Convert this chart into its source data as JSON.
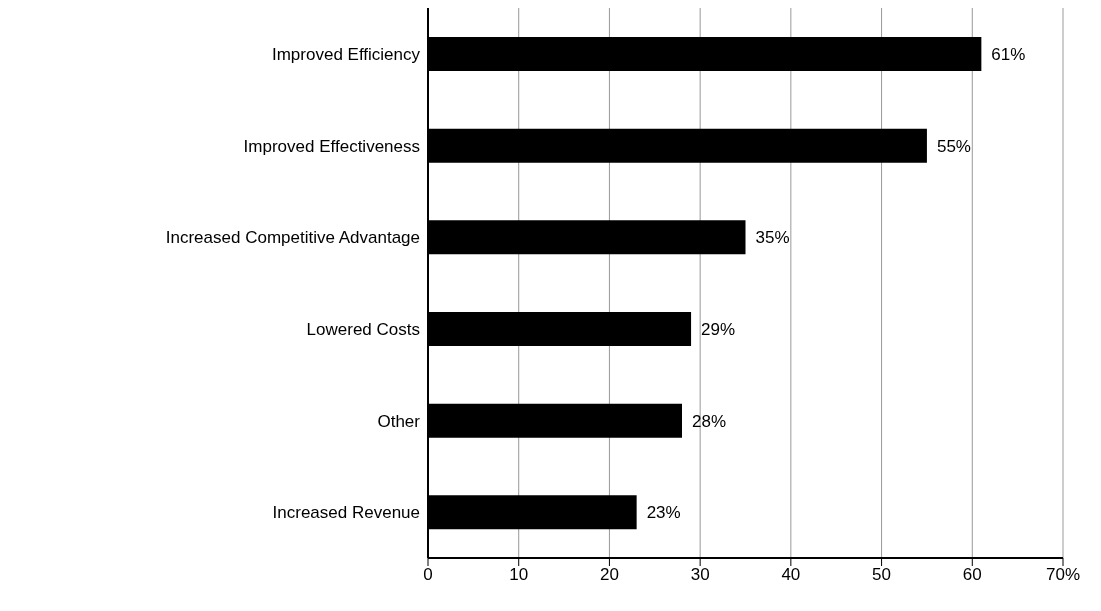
{
  "chart_data": {
    "type": "bar",
    "orientation": "horizontal",
    "categories": [
      "Improved Efficiency",
      "Improved Effectiveness",
      "Increased Competitive Advantage",
      "Lowered Costs",
      "Other",
      "Increased Revenue"
    ],
    "values": [
      61,
      55,
      35,
      29,
      28,
      23
    ],
    "value_labels": [
      "61%",
      "55%",
      "35%",
      "29%",
      "28%",
      "23%"
    ],
    "color": "#000000",
    "xlim": [
      0,
      70
    ],
    "xticks": [
      0,
      10,
      20,
      30,
      40,
      50,
      60,
      {
        "value": 70,
        "label": "70%"
      }
    ],
    "grid": "x"
  }
}
